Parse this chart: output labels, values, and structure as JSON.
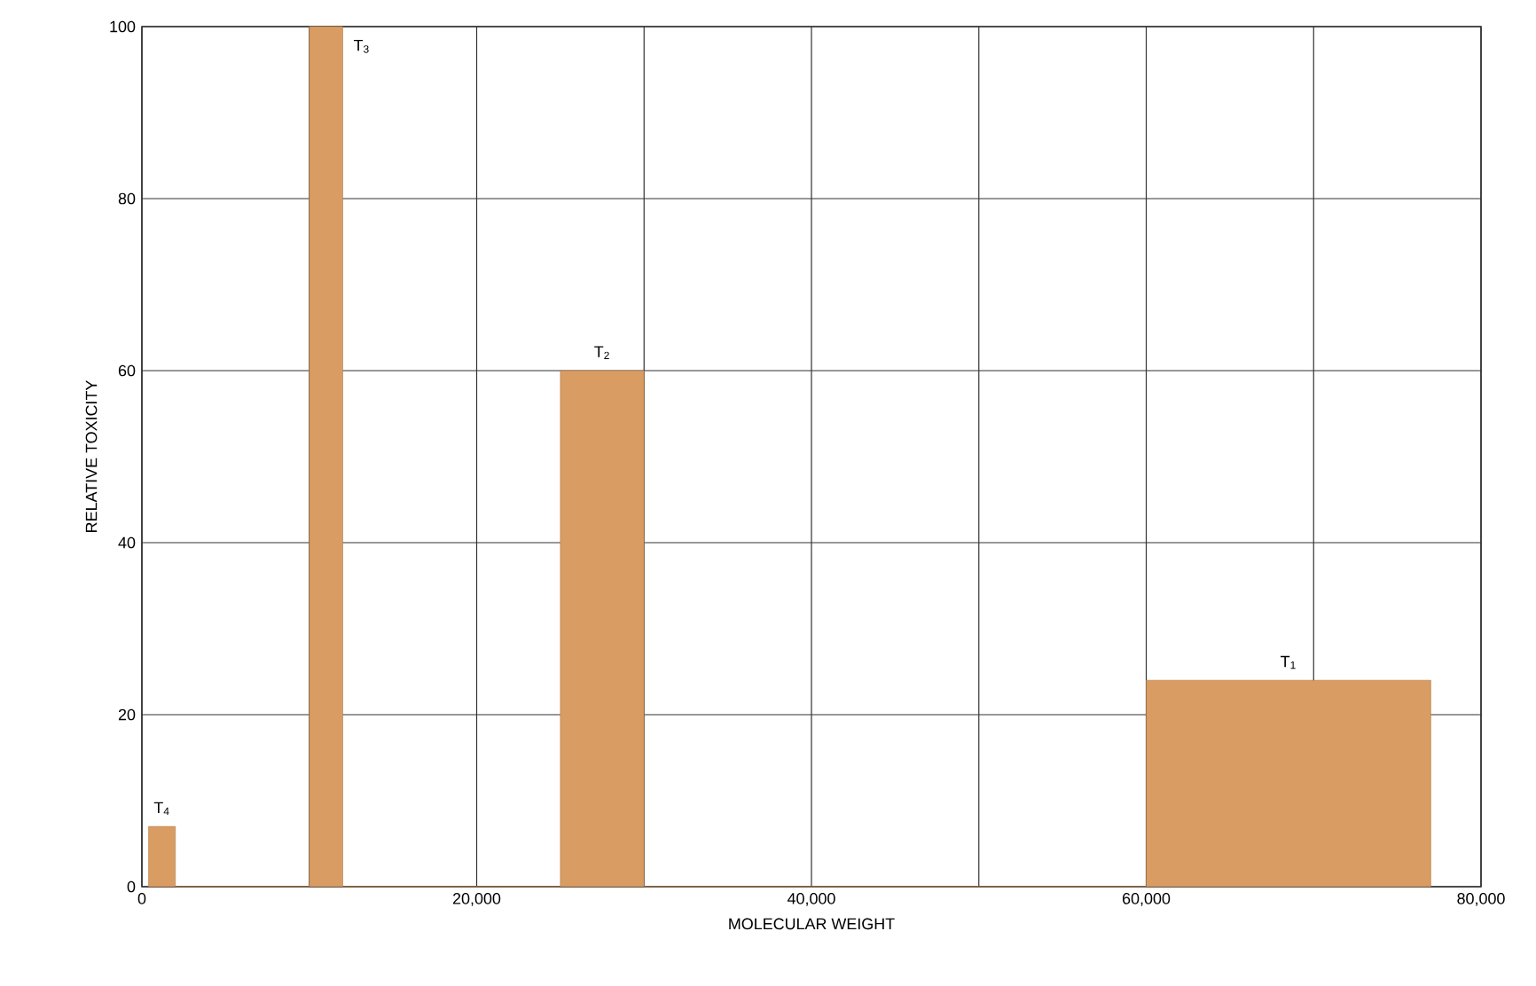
{
  "chart_data": {
    "type": "histogram",
    "xlabel": "MOLECULAR WEIGHT",
    "ylabel": "RELATIVE TOXICITY",
    "bins": [
      400,
      2000,
      10000,
      12000,
      25000,
      30000,
      60000,
      77000
    ],
    "values": [
      7,
      0,
      100,
      0,
      60,
      0,
      24
    ],
    "color": "#d99c62",
    "xlim": [
      0,
      80000
    ],
    "ylim": [
      0,
      100
    ],
    "xticks": [
      {
        "value": 0,
        "label": "0"
      },
      {
        "value": 10000,
        "label": null
      },
      {
        "value": 20000,
        "label": "20,000"
      },
      {
        "value": 30000,
        "label": null
      },
      {
        "value": 40000,
        "label": "40,000"
      },
      {
        "value": 50000,
        "label": null
      },
      {
        "value": 60000,
        "label": "60,000"
      },
      {
        "value": 70000,
        "label": null
      },
      {
        "value": 80000,
        "label": "80,000"
      }
    ],
    "yticks": [
      0,
      20,
      40,
      60,
      80,
      100
    ],
    "grid": true,
    "annotations": [
      {
        "text": "T$_{4}$",
        "x": 1200,
        "y": 7
      },
      {
        "text": "T$_{3}$",
        "x": 11000,
        "y": 100
      },
      {
        "text": "T$_{2}$",
        "x": 27500,
        "y": 60
      },
      {
        "text": "T$_{1}$",
        "x": 68500,
        "y": 24
      }
    ]
  }
}
